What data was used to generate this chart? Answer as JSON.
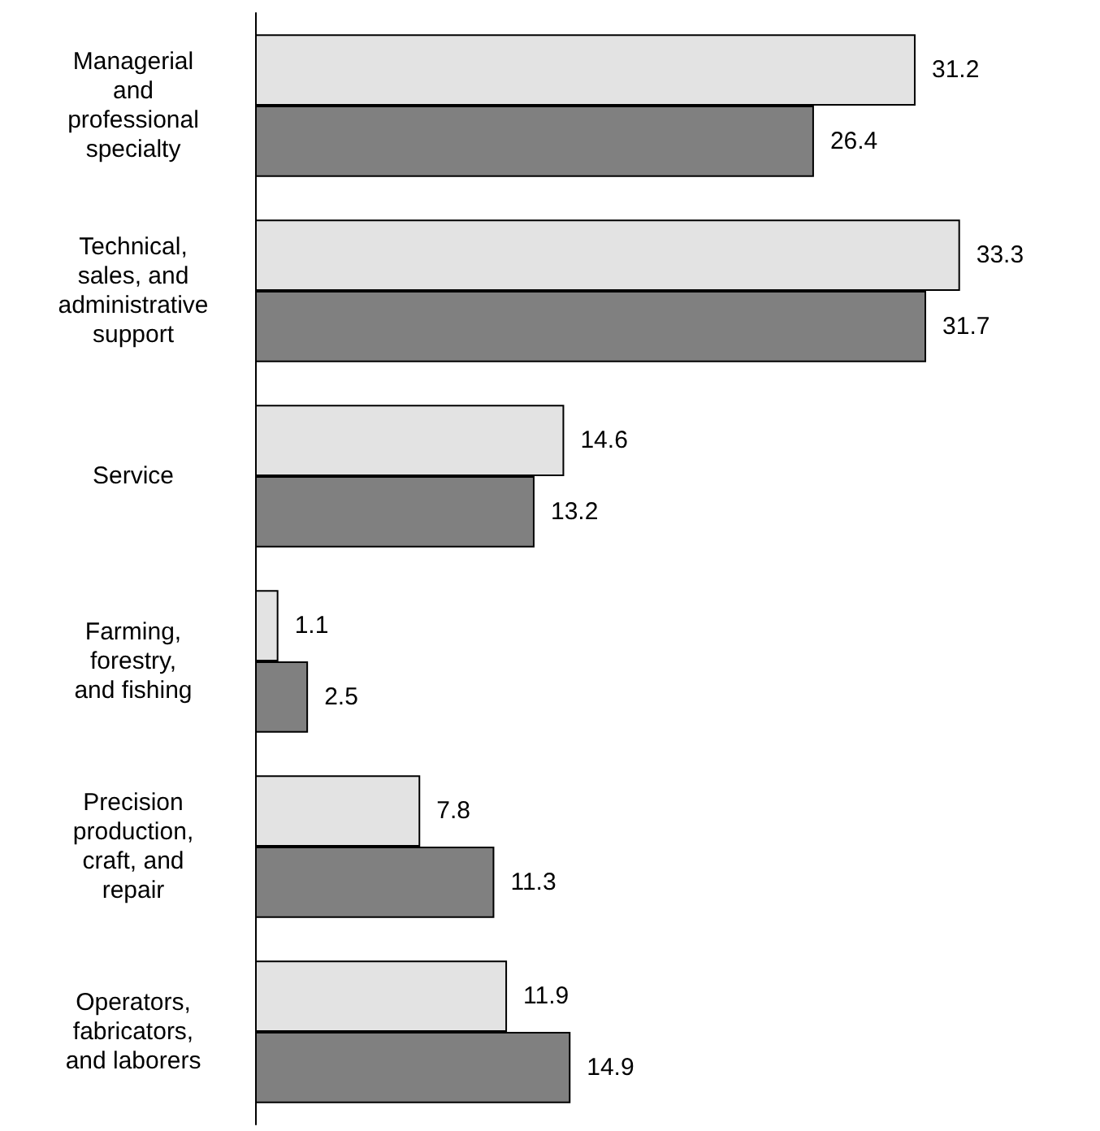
{
  "chart_data": {
    "type": "bar",
    "orientation": "horizontal",
    "categories": [
      "Managerial\nand\nprofessional\nspecialty",
      "Technical,\nsales, and\nadministrative\nsupport",
      "Service",
      "Farming,\nforestry,\nand fishing",
      "Precision\nproduction,\ncraft, and\nrepair",
      "Operators,\nfabricators,\nand laborers"
    ],
    "series": [
      {
        "color": "#e3e3e3",
        "values": [
          31.2,
          33.3,
          14.6,
          1.1,
          7.8,
          11.9
        ]
      },
      {
        "color": "#808080",
        "values": [
          26.4,
          31.7,
          13.2,
          2.5,
          11.3,
          14.9
        ]
      }
    ],
    "data_labels": true
  }
}
